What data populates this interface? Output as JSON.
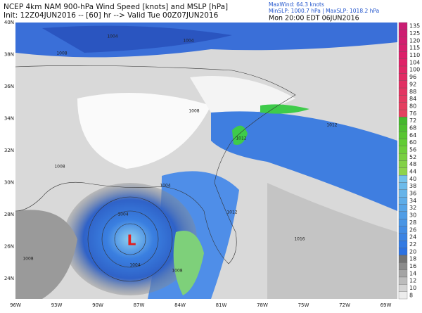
{
  "header": {
    "title": "NCEP 4km NAM 900-hPa Wind Speed [knots] and MSLP [hPa]",
    "init": "Init: 12Z04JUN2016 -- [60] hr --> Valid Tue 00Z07JUN2016",
    "max_wind": "MaxWind: 64.3 knots",
    "slp_range": "MinSLP: 1000.7 hPa | MaxSLP: 1018.2 hPa",
    "local_time": "Mon 20:00 EDT 06JUN2016"
  },
  "colorbar": {
    "labels": [
      "135",
      "125",
      "120",
      "115",
      "110",
      "104",
      "100",
      "96",
      "92",
      "88",
      "84",
      "80",
      "76",
      "72",
      "68",
      "64",
      "60",
      "56",
      "52",
      "48",
      "44",
      "40",
      "38",
      "36",
      "34",
      "32",
      "30",
      "28",
      "26",
      "24",
      "22",
      "20",
      "18",
      "16",
      "14",
      "12",
      "10",
      "8"
    ]
  },
  "axes": {
    "longitudes": [
      "96W",
      "93W",
      "90W",
      "87W",
      "84W",
      "81W",
      "78W",
      "75W",
      "72W",
      "69W"
    ],
    "latitudes": [
      "40N",
      "38N",
      "36N",
      "34N",
      "32N",
      "30N",
      "28N",
      "26N",
      "24N"
    ]
  },
  "isobars": [
    "1004",
    "1004",
    "1008",
    "1008",
    "1008",
    "1012",
    "1012",
    "1004",
    "1004",
    "1012",
    "1008",
    "1004",
    "1008",
    "1016"
  ],
  "low_marker": "L"
}
